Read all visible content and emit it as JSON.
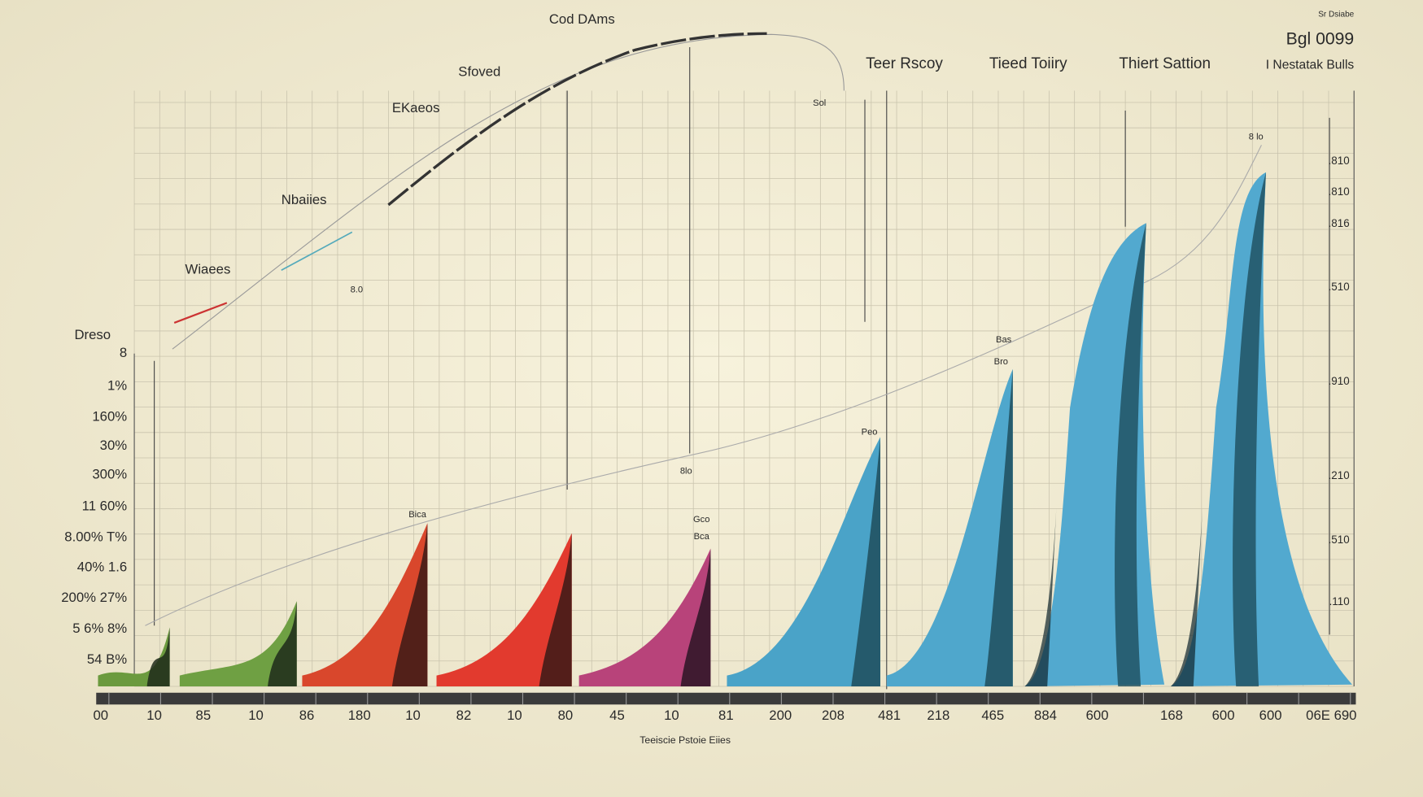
{
  "header": {
    "items": [
      "Teer Rscoy",
      "Tieed Toiiry",
      "Thiert Sattion"
    ],
    "badge": "Bgl 0099",
    "badge_sub": "I Nestatak Bulls",
    "corner": "Sr Dsiabe"
  },
  "annotations": [
    "Cod DAms",
    "Sfoved",
    "EKaeos",
    "Nbaiies",
    "Wiaees",
    "Dreso"
  ],
  "y_labels": [
    "8",
    "1%",
    "160%",
    "30%",
    "300%",
    "11 60%",
    "8.00% T%",
    "40% 1.6",
    "200% 27%",
    "5 6% 8%",
    "54 B%"
  ],
  "y2_labels": [
    ".810",
    ".810",
    ".816",
    ".510",
    ".910",
    ".210",
    ".510",
    ".110"
  ],
  "x_labels": [
    "00",
    "10",
    "85",
    "10",
    "86",
    "180",
    "10",
    "82",
    "10",
    "80",
    "45",
    "10",
    "81",
    "200",
    "208",
    "481",
    "218",
    "465",
    "884",
    "600",
    "168",
    "600",
    "600",
    "06E 690"
  ],
  "x_title": "Teeiscie Pstoie Eiies",
  "data_labels": [
    "8.0",
    "Sol",
    "8lo",
    "Gco",
    "Bca",
    "8 lo",
    "Bica",
    "Peo",
    "Bro",
    "Bas"
  ]
}
